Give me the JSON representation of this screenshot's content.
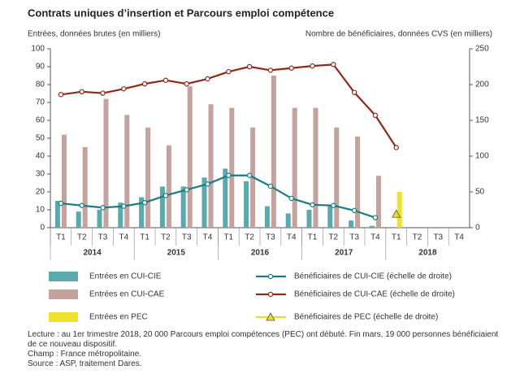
{
  "chart_data": {
    "type": "bar_line",
    "title": "Contrats uniques d’insertion et Parcours emploi compétence",
    "ylabel": "Entrées, données brutes (en milliers)",
    "y2label": "Nombre de bénéficiaires, données CVS (en milliers)",
    "categories": [
      "T1",
      "T2",
      "T3",
      "T4",
      "T1",
      "T2",
      "T3",
      "T4",
      "T1",
      "T2",
      "T3",
      "T4",
      "T1",
      "T2",
      "T3",
      "T4",
      "T1",
      "T2",
      "T3",
      "T4"
    ],
    "years": [
      "2014",
      "2015",
      "2016",
      "2017",
      "2018"
    ],
    "ylim": [
      0,
      100
    ],
    "yticks": [
      0,
      10,
      20,
      30,
      40,
      50,
      60,
      70,
      80,
      90,
      100
    ],
    "y2lim": [
      0,
      250
    ],
    "y2ticks": [
      0,
      50,
      100,
      150,
      200,
      250
    ],
    "series": [
      {
        "name": "Entrées en CUI-CIE",
        "kind": "bar",
        "color": "#5aa9ad",
        "values": [
          15,
          9,
          10,
          14,
          17,
          23,
          23,
          28,
          33,
          26,
          12,
          8,
          10,
          12,
          4,
          1,
          null,
          null,
          null,
          null
        ]
      },
      {
        "name": "Entrées en CUI-CAE",
        "kind": "bar",
        "color": "#c4a29e",
        "values": [
          52,
          45,
          72,
          63,
          56,
          46,
          79,
          69,
          67,
          56,
          85,
          67,
          67,
          56,
          51,
          29,
          null,
          null,
          null,
          null
        ]
      },
      {
        "name": "Entrées en PEC",
        "kind": "bar",
        "color": "#efe22a",
        "values": [
          null,
          null,
          null,
          null,
          null,
          null,
          null,
          null,
          null,
          null,
          null,
          null,
          null,
          null,
          null,
          null,
          20,
          null,
          null,
          null
        ]
      },
      {
        "name": "Bénéficiaires de CUI-CIE (échelle de droite)",
        "kind": "line",
        "axis": "y2",
        "color": "#1a7b82",
        "values": [
          34,
          31,
          28,
          30,
          35,
          45,
          53,
          61,
          73,
          73,
          58,
          41,
          32,
          31,
          24,
          14,
          null,
          null,
          null,
          null
        ]
      },
      {
        "name": "Bénéficiaires de CUI-CAE (échelle de droite)",
        "kind": "line",
        "axis": "y2",
        "color": "#8e2a1c",
        "values": [
          186,
          190,
          188,
          194,
          201,
          206,
          201,
          208,
          218,
          225,
          220,
          223,
          226,
          228,
          189,
          157,
          112,
          null,
          null,
          null
        ]
      },
      {
        "name": "Bénéficiaires de PEC (échelle de droite)",
        "kind": "triangle",
        "axis": "y2",
        "color": "#e8dc2a",
        "values": [
          null,
          null,
          null,
          null,
          null,
          null,
          null,
          null,
          null,
          null,
          null,
          null,
          null,
          null,
          null,
          null,
          19,
          null,
          null,
          null
        ]
      }
    ],
    "notes": [
      "Lecture : au 1er trimestre 2018, 20 000 Parcours emploi compétences (PEC) ont débuté. Fin mars, 19 000 personnes bénéficiaient de ce nouveau dispositif.",
      "Champ : France métropolitaine.",
      "Source : ASP, traitement Dares."
    ]
  }
}
